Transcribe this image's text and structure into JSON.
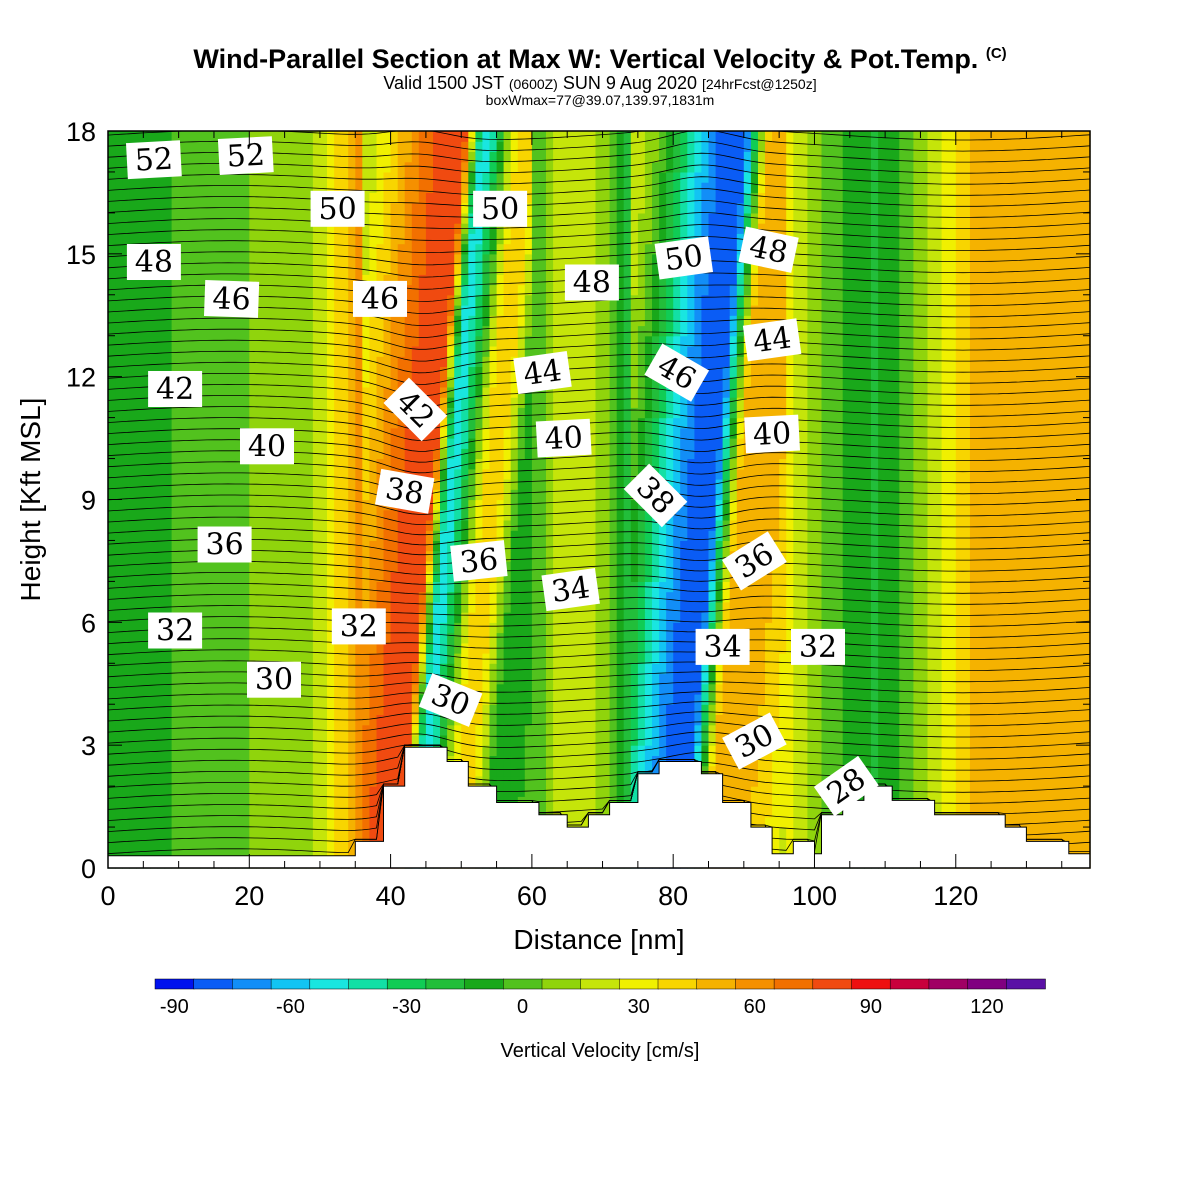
{
  "header": {
    "title": "Wind-Parallel Section at Max W: Vertical Velocity & Pot.Temp.",
    "title_mark": "(C)",
    "valid_prefix": "Valid 1500 JST",
    "valid_utc": "(0600Z)",
    "valid_date": "SUN 9 Aug 2020",
    "forecast": "[24hrFcst@1250z]",
    "box_info": "boxWmax=77@39.07,139.97,1831m"
  },
  "chart_data": {
    "type": "heatmap",
    "title": "Wind-Parallel Section at Max W: Vertical Velocity & Pot.Temp.",
    "xlabel": "Distance [nm]",
    "ylabel": "Height [Kft MSL]",
    "xlim": [
      0,
      139
    ],
    "ylim": [
      0,
      18
    ],
    "x_ticks": [
      "0",
      "20",
      "40",
      "60",
      "80",
      "100",
      "120"
    ],
    "y_ticks": [
      "0",
      "3",
      "6",
      "9",
      "12",
      "15",
      "18"
    ],
    "grid": false,
    "colorbar": {
      "label": "Vertical Velocity [cm/s]",
      "placement": "bottom",
      "tick_labels": [
        "-90",
        "-60",
        "-30",
        "0",
        "30",
        "60",
        "90",
        "120"
      ],
      "levels": [
        -90,
        -80,
        -70,
        -60,
        -50,
        -40,
        -30,
        -20,
        -10,
        0,
        10,
        20,
        30,
        40,
        50,
        60,
        70,
        80,
        90,
        100,
        110,
        120,
        130
      ],
      "colors": [
        "#0011ee",
        "#0a5cf5",
        "#128ef7",
        "#12c4f3",
        "#19e6e0",
        "#12e0a5",
        "#10cc55",
        "#22be3a",
        "#19a81a",
        "#52c21e",
        "#90d40c",
        "#c5e50a",
        "#f0f000",
        "#f8d500",
        "#f5b200",
        "#f59000",
        "#f27000",
        "#f04a10",
        "#ee1010",
        "#c8003c",
        "#a00064",
        "#800080",
        "#5a10a5"
      ]
    },
    "vertical_velocity_bands": [
      {
        "x": 8,
        "w_cms": -5
      },
      {
        "x": 25,
        "w_cms": 8
      },
      {
        "x": 42,
        "w_cms": 85
      },
      {
        "x": 45,
        "w_cms": -50
      },
      {
        "x": 51,
        "w_cms": 45
      },
      {
        "x": 56,
        "w_cms": -15
      },
      {
        "x": 66,
        "w_cms": 25
      },
      {
        "x": 82,
        "w_cms": -85
      },
      {
        "x": 87,
        "w_cms": 55
      },
      {
        "x": 108,
        "w_cms": -15
      },
      {
        "x": 124,
        "w_cms": 50
      }
    ],
    "terrain_kft": [
      {
        "x": 0,
        "z": 0.3
      },
      {
        "x": 35,
        "z": 0.3
      },
      {
        "x": 35,
        "z": 0.65
      },
      {
        "x": 39,
        "z": 0.65
      },
      {
        "x": 39,
        "z": 2.0
      },
      {
        "x": 42,
        "z": 2.0
      },
      {
        "x": 42,
        "z": 2.95
      },
      {
        "x": 48,
        "z": 2.95
      },
      {
        "x": 48,
        "z": 2.6
      },
      {
        "x": 51,
        "z": 2.6
      },
      {
        "x": 51,
        "z": 2.0
      },
      {
        "x": 55,
        "z": 2.0
      },
      {
        "x": 55,
        "z": 1.6
      },
      {
        "x": 61,
        "z": 1.6
      },
      {
        "x": 61,
        "z": 1.3
      },
      {
        "x": 65,
        "z": 1.3
      },
      {
        "x": 65,
        "z": 1.0
      },
      {
        "x": 68,
        "z": 1.0
      },
      {
        "x": 68,
        "z": 1.3
      },
      {
        "x": 71,
        "z": 1.3
      },
      {
        "x": 71,
        "z": 1.6
      },
      {
        "x": 75,
        "z": 1.6
      },
      {
        "x": 75,
        "z": 2.3
      },
      {
        "x": 78,
        "z": 2.3
      },
      {
        "x": 78,
        "z": 2.6
      },
      {
        "x": 84,
        "z": 2.6
      },
      {
        "x": 84,
        "z": 2.3
      },
      {
        "x": 87,
        "z": 2.3
      },
      {
        "x": 87,
        "z": 1.6
      },
      {
        "x": 91,
        "z": 1.6
      },
      {
        "x": 91,
        "z": 1.0
      },
      {
        "x": 94,
        "z": 1.0
      },
      {
        "x": 94,
        "z": 0.35
      },
      {
        "x": 97,
        "z": 0.35
      },
      {
        "x": 97,
        "z": 0.65
      },
      {
        "x": 100,
        "z": 0.65
      },
      {
        "x": 100,
        "z": 0.35
      },
      {
        "x": 101,
        "z": 0.35
      },
      {
        "x": 101,
        "z": 1.3
      },
      {
        "x": 104,
        "z": 1.3
      },
      {
        "x": 104,
        "z": 1.65
      },
      {
        "x": 107,
        "z": 1.65
      },
      {
        "x": 107,
        "z": 2.0
      },
      {
        "x": 111,
        "z": 2.0
      },
      {
        "x": 111,
        "z": 1.65
      },
      {
        "x": 117,
        "z": 1.65
      },
      {
        "x": 117,
        "z": 1.3
      },
      {
        "x": 127,
        "z": 1.3
      },
      {
        "x": 127,
        "z": 1.0
      },
      {
        "x": 130,
        "z": 1.0
      },
      {
        "x": 130,
        "z": 0.65
      },
      {
        "x": 136,
        "z": 0.65
      },
      {
        "x": 136,
        "z": 0.35
      },
      {
        "x": 139,
        "z": 0.35
      }
    ],
    "potential_temperature_labels": [
      {
        "text": "52",
        "x": 6.5,
        "y": 17.3,
        "rot": -3
      },
      {
        "text": "52",
        "x": 19.5,
        "y": 17.4,
        "rot": -3
      },
      {
        "text": "50",
        "x": 32.5,
        "y": 16.1,
        "rot": 0
      },
      {
        "text": "50",
        "x": 55.5,
        "y": 16.1,
        "rot": 0
      },
      {
        "text": "50",
        "x": 81.5,
        "y": 14.9,
        "rot": -8
      },
      {
        "text": "48",
        "x": 6.5,
        "y": 14.8,
        "rot": 0
      },
      {
        "text": "48",
        "x": 68.5,
        "y": 14.3,
        "rot": 0
      },
      {
        "text": "48",
        "x": 93.5,
        "y": 15.1,
        "rot": 12
      },
      {
        "text": "46",
        "x": 17.5,
        "y": 13.9,
        "rot": 2
      },
      {
        "text": "46",
        "x": 38.5,
        "y": 13.9,
        "rot": 0
      },
      {
        "text": "46",
        "x": 80.5,
        "y": 12.1,
        "rot": 30
      },
      {
        "text": "44",
        "x": 61.5,
        "y": 12.1,
        "rot": -8
      },
      {
        "text": "44",
        "x": 94.0,
        "y": 12.9,
        "rot": -8
      },
      {
        "text": "42",
        "x": 9.5,
        "y": 11.7,
        "rot": 0
      },
      {
        "text": "42",
        "x": 43.5,
        "y": 11.2,
        "rot": 45
      },
      {
        "text": "40",
        "x": 22.5,
        "y": 10.3,
        "rot": 0
      },
      {
        "text": "40",
        "x": 64.5,
        "y": 10.5,
        "rot": -3
      },
      {
        "text": "40",
        "x": 94.0,
        "y": 10.6,
        "rot": -3
      },
      {
        "text": "38",
        "x": 42.0,
        "y": 9.2,
        "rot": 10
      },
      {
        "text": "38",
        "x": 77.5,
        "y": 9.1,
        "rot": 45
      },
      {
        "text": "36",
        "x": 16.5,
        "y": 7.9,
        "rot": 0
      },
      {
        "text": "36",
        "x": 52.5,
        "y": 7.5,
        "rot": -6
      },
      {
        "text": "36",
        "x": 91.5,
        "y": 7.5,
        "rot": -32
      },
      {
        "text": "34",
        "x": 65.5,
        "y": 6.8,
        "rot": -8
      },
      {
        "text": "34",
        "x": 87.0,
        "y": 5.4,
        "rot": 0
      },
      {
        "text": "32",
        "x": 9.5,
        "y": 5.8,
        "rot": 0
      },
      {
        "text": "32",
        "x": 35.5,
        "y": 5.9,
        "rot": 0
      },
      {
        "text": "32",
        "x": 100.5,
        "y": 5.4,
        "rot": 0
      },
      {
        "text": "30",
        "x": 23.5,
        "y": 4.6,
        "rot": 0
      },
      {
        "text": "30",
        "x": 48.5,
        "y": 4.1,
        "rot": 22
      },
      {
        "text": "30",
        "x": 91.5,
        "y": 3.1,
        "rot": -28
      },
      {
        "text": "28",
        "x": 104.5,
        "y": 2.0,
        "rot": -35
      }
    ]
  }
}
